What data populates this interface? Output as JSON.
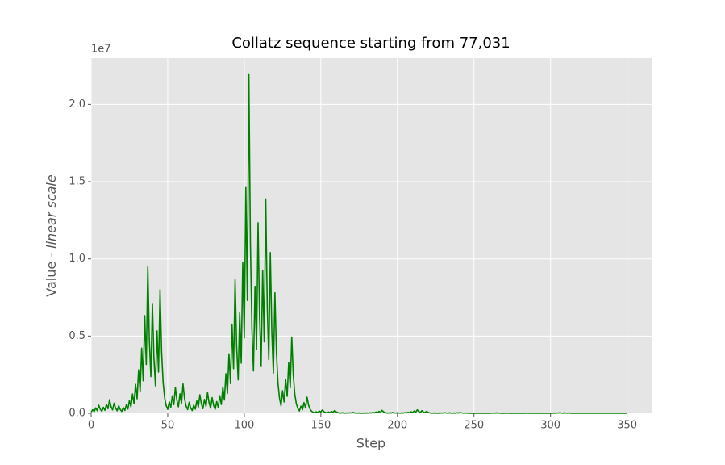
{
  "chart_data": {
    "type": "line",
    "title": "Collatz sequence starting from 77,031",
    "x_label": "Step",
    "y_label": {
      "text": "Value - ",
      "emphasis": "linear scale"
    },
    "y_offset_label": "1e7",
    "grid": true,
    "xlim": [
      0,
      366
    ],
    "ylim": [
      0,
      23000000
    ],
    "xticks": [
      0,
      50,
      100,
      150,
      200,
      250,
      300,
      350
    ],
    "yticks": [
      {
        "value": 0,
        "label": "0.0"
      },
      {
        "value": 5000000,
        "label": "0.5"
      },
      {
        "value": 10000000,
        "label": "1.0"
      },
      {
        "value": 15000000,
        "label": "1.5"
      },
      {
        "value": 20000000,
        "label": "2.0"
      }
    ],
    "x": [
      0,
      1,
      2,
      3,
      4,
      5,
      6,
      7,
      8,
      9,
      10,
      11,
      12,
      13,
      14,
      15,
      16,
      17,
      18,
      19,
      20,
      21,
      22,
      23,
      24,
      25,
      26,
      27,
      28,
      29,
      30,
      31,
      32,
      33,
      34,
      35,
      36,
      37,
      38,
      39,
      40,
      41,
      42,
      43,
      44,
      45,
      46,
      47,
      48,
      49,
      50,
      51,
      52,
      53,
      54,
      55,
      56,
      57,
      58,
      59,
      60,
      61,
      62,
      63,
      64,
      65,
      66,
      67,
      68,
      69,
      70,
      71,
      72,
      73,
      74,
      75,
      76,
      77,
      78,
      79,
      80,
      81,
      82,
      83,
      84,
      85,
      86,
      87,
      88,
      89,
      90,
      91,
      92,
      93,
      94,
      95,
      96,
      97,
      98,
      99,
      100,
      101,
      102,
      103,
      104,
      105,
      106,
      107,
      108,
      109,
      110,
      111,
      112,
      113,
      114,
      115,
      116,
      117,
      118,
      119,
      120,
      121,
      122,
      123,
      124,
      125,
      126,
      127,
      128,
      129,
      130,
      131,
      132,
      133,
      134,
      135,
      136,
      137,
      138,
      139,
      140,
      141,
      142,
      143,
      144,
      145,
      146,
      147,
      148,
      149,
      150,
      151,
      152,
      153,
      154,
      155,
      156,
      157,
      158,
      159,
      160,
      161,
      162,
      163,
      164,
      165,
      166,
      167,
      168,
      169,
      170,
      171,
      172,
      173,
      174,
      175,
      176,
      177,
      178,
      179,
      180,
      181,
      182,
      183,
      184,
      185,
      186,
      187,
      188,
      189,
      190,
      191,
      192,
      193,
      194,
      195,
      196,
      197,
      198,
      199,
      200,
      201,
      202,
      203,
      204,
      205,
      206,
      207,
      208,
      209,
      210,
      211,
      212,
      213,
      214,
      215,
      216,
      217,
      218,
      219,
      220,
      221,
      222,
      223,
      224,
      225,
      226,
      227,
      228,
      229,
      230,
      231,
      232,
      233,
      234,
      235,
      236,
      237,
      238,
      239,
      240,
      241,
      242,
      243,
      244,
      245,
      246,
      247,
      248,
      249,
      250,
      251,
      252,
      253,
      254,
      255,
      256,
      257,
      258,
      259,
      260,
      261,
      262,
      263,
      264,
      265,
      266,
      267,
      268,
      269,
      270,
      271,
      272,
      273,
      274,
      275,
      276,
      277,
      278,
      279,
      280,
      281,
      282,
      283,
      284,
      285,
      286,
      287,
      288,
      289,
      290,
      291,
      292,
      293,
      294,
      295,
      296,
      297,
      298,
      299,
      300,
      301,
      302,
      303,
      304,
      305,
      306,
      307,
      308,
      309,
      310,
      311,
      312,
      313,
      314,
      315,
      316,
      317,
      318,
      319,
      320,
      321,
      322,
      323,
      324,
      325,
      326,
      327,
      328,
      329,
      330,
      331,
      332,
      333,
      334,
      335,
      336,
      337,
      338,
      339,
      340,
      341,
      342,
      343,
      344,
      345,
      346,
      347,
      348,
      349,
      350
    ],
    "series": [
      {
        "color": "#008000",
        "values": [
          77031,
          231094,
          115547,
          346642,
          173321,
          519964,
          259982,
          129991,
          389974,
          194987,
          584962,
          292481,
          877444,
          438722,
          219361,
          658084,
          329042,
          164521,
          493564,
          246782,
          123391,
          370174,
          185087,
          555262,
          277631,
          832894,
          416447,
          1249342,
          624671,
          1874014,
          937007,
          2811022,
          1405511,
          4216534,
          2108267,
          6324802,
          3162401,
          9487204,
          4743602,
          2371801,
          7115404,
          3557702,
          1778851,
          5336554,
          2668277,
          8004832,
          4002416,
          2001208,
          1000604,
          500302,
          250151,
          750454,
          375227,
          1125682,
          562841,
          1688524,
          844262,
          422131,
          1266394,
          633197,
          1899592,
          949796,
          474898,
          237449,
          712348,
          356174,
          178087,
          534262,
          267131,
          801394,
          400697,
          1202092,
          601046,
          300523,
          901570,
          450785,
          1352356,
          676178,
          338089,
          1014268,
          507134,
          253567,
          760702,
          380351,
          1141054,
          570527,
          1711582,
          855791,
          2567374,
          1283687,
          3851062,
          1925531,
          5776594,
          2888297,
          8664892,
          4332446,
          2166223,
          6498670,
          3249335,
          9748006,
          4874003,
          14622010,
          7311005,
          21933016,
          10966508,
          5483254,
          2741627,
          8224882,
          4112441,
          12337324,
          6168662,
          3084331,
          9252994,
          4626497,
          13879492,
          6939746,
          3469873,
          10409620,
          5204810,
          2602405,
          7807216,
          3903608,
          1951804,
          975902,
          487951,
          1463854,
          731927,
          2195782,
          1097891,
          3293674,
          1646837,
          4940512,
          2470256,
          1235128,
          617564,
          308782,
          154391,
          463174,
          231587,
          694762,
          347381,
          1042144,
          521072,
          260536,
          130268,
          65134,
          32567,
          97702,
          48851,
          146554,
          73277,
          219832,
          109916,
          54958,
          27479,
          82438,
          41219,
          123658,
          61829,
          185488,
          92744,
          46372,
          23186,
          11593,
          34780,
          17390,
          8695,
          26086,
          13043,
          39130,
          19565,
          58696,
          29348,
          14674,
          7337,
          22012,
          11006,
          5503,
          16510,
          8255,
          24766,
          12383,
          37150,
          18575,
          55726,
          27863,
          83590,
          41795,
          125386,
          62693,
          188080,
          94040,
          47020,
          23510,
          11755,
          35266,
          17633,
          52900,
          26450,
          13225,
          39676,
          19838,
          9919,
          29758,
          14879,
          44638,
          22319,
          66958,
          33479,
          100438,
          50219,
          150658,
          75329,
          225988,
          112994,
          56497,
          169492,
          84746,
          42373,
          127120,
          63560,
          31780,
          15890,
          7945,
          23836,
          11918,
          5959,
          17878,
          8939,
          26818,
          13409,
          40228,
          20114,
          10057,
          30172,
          15086,
          7543,
          22630,
          11315,
          33946,
          16973,
          50920,
          25460,
          12730,
          6365,
          19096,
          9548,
          4774,
          2387,
          7162,
          3581,
          10744,
          5372,
          2686,
          1343,
          4030,
          2015,
          6046,
          3023,
          9070,
          4535,
          13606,
          6803,
          20410,
          10205,
          30616,
          15308,
          7654,
          3827,
          11482,
          5741,
          17224,
          8612,
          4306,
          2153,
          6460,
          3230,
          1615,
          4846,
          2423,
          7270,
          3635,
          10906,
          5453,
          16360,
          8180,
          4090,
          2045,
          6136,
          3068,
          1534,
          767,
          2302,
          1151,
          3454,
          1727,
          5182,
          2591,
          7774,
          3887,
          11662,
          5831,
          17494,
          8747,
          26242,
          13121,
          39364,
          19682,
          9841,
          29524,
          14762,
          7381,
          22144,
          11072,
          5536,
          2768,
          1384,
          692,
          346,
          173,
          520,
          260,
          130,
          65,
          196,
          98,
          49,
          148,
          74,
          37,
          112,
          56,
          28,
          14,
          7,
          22,
          11,
          34,
          17,
          52,
          26,
          13,
          40,
          20,
          10,
          5,
          16,
          8,
          4,
          2,
          1
        ]
      }
    ]
  }
}
